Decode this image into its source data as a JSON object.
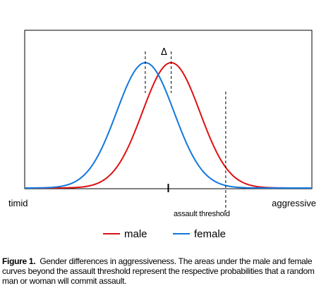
{
  "chart_data": {
    "type": "line",
    "title": "",
    "xlabel_left": "timid",
    "xlabel_right": "aggressive",
    "ylabel": "",
    "grid": false,
    "x_range": [
      -5,
      5
    ],
    "series": [
      {
        "name": "male",
        "color": "#dd1111",
        "mean": 0.1,
        "sd": 1.0
      },
      {
        "name": "female",
        "color": "#1177dd",
        "mean": -0.8,
        "sd": 1.0
      }
    ],
    "annotations": {
      "delta_symbol": "Δ",
      "threshold_label": "assault threshold",
      "threshold_x": 2.0,
      "center_tick_x": 0.0
    }
  },
  "legend": {
    "male": "male",
    "female": "female"
  },
  "caption": {
    "lead": "Figure 1.",
    "text": "Gender differences in aggressiveness. The areas under the male and female curves beyond the assault threshold represent the respective probabilities that a random man or woman will commit assault."
  }
}
